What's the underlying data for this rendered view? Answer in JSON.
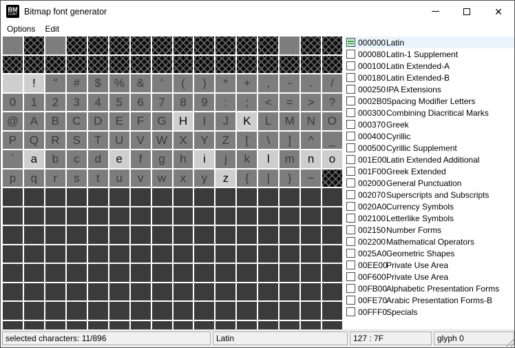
{
  "window": {
    "title": "Bitmap font generator",
    "icon": {
      "top": "BM",
      "bottom": "FONT"
    }
  },
  "menu": {
    "items": [
      {
        "label": "Options"
      },
      {
        "label": "Edit"
      }
    ]
  },
  "grid": {
    "columns": 16,
    "dark_rows": 8,
    "legend": {
      "n": "available",
      "s": "selected",
      "x": "not-in-font",
      "d": "empty"
    },
    "rows": [
      {
        "states": "nxnxxxxxxxxxxnxx",
        "glyphs": [
          "",
          "",
          "",
          "",
          "",
          "",
          "",
          "",
          "",
          "",
          "",
          "",
          "",
          "",
          "",
          ""
        ]
      },
      {
        "states": "xxxxxxxxxxxxxxxx",
        "glyphs": [
          "",
          "",
          "",
          "",
          "",
          "",
          "",
          "",
          "",
          "",
          "",
          "",
          "",
          "",
          "",
          ""
        ]
      },
      {
        "states": "ssnnnnnnnnnnnnnn",
        "glyphs": [
          " ",
          "!",
          "\"",
          "#",
          "$",
          "%",
          "&",
          "'",
          "(",
          ")",
          "*",
          "+",
          ",",
          "-",
          ".",
          "/"
        ]
      },
      {
        "states": "nnnnnnnnnnnnnnnn",
        "glyphs": [
          "0",
          "1",
          "2",
          "3",
          "4",
          "5",
          "6",
          "7",
          "8",
          "9",
          ":",
          ";",
          "<",
          "=",
          ">",
          "?"
        ]
      },
      {
        "states": "nnnnnnnnsnnsnnnn",
        "glyphs": [
          "@",
          "A",
          "B",
          "C",
          "D",
          "E",
          "F",
          "G",
          "H",
          "I",
          "J",
          "K",
          "L",
          "M",
          "N",
          "O"
        ]
      },
      {
        "states": "nnnnnnnnnnnnnnnn",
        "glyphs": [
          "P",
          "Q",
          "R",
          "S",
          "T",
          "U",
          "V",
          "W",
          "X",
          "Y",
          "Z",
          "[",
          "\\",
          "]",
          "^",
          "_"
        ]
      },
      {
        "states": "nsnnnsnnnsnnsnss",
        "glyphs": [
          "`",
          "a",
          "b",
          "c",
          "d",
          "e",
          "f",
          "g",
          "h",
          "i",
          "j",
          "k",
          "l",
          "m",
          "n",
          "o"
        ]
      },
      {
        "states": "nnnnnnnnnnsnnnnx",
        "glyphs": [
          "p",
          "q",
          "r",
          "s",
          "t",
          "u",
          "v",
          "w",
          "x",
          "y",
          "z",
          "{",
          "|",
          "}",
          "~",
          ""
        ]
      }
    ]
  },
  "blocks": [
    {
      "code": "000000",
      "name": "Latin",
      "checkbox": "partial",
      "selected": true
    },
    {
      "code": "000080",
      "name": "Latin-1 Supplement",
      "checkbox": "unchecked",
      "selected": false
    },
    {
      "code": "000100",
      "name": "Latin Extended-A",
      "checkbox": "unchecked",
      "selected": false
    },
    {
      "code": "000180",
      "name": "Latin Extended-B",
      "checkbox": "unchecked",
      "selected": false
    },
    {
      "code": "000250",
      "name": "IPA Extensions",
      "checkbox": "unchecked",
      "selected": false
    },
    {
      "code": "0002B0",
      "name": "Spacing Modifier Letters",
      "checkbox": "unchecked",
      "selected": false
    },
    {
      "code": "000300",
      "name": "Combining Diacritical Marks",
      "checkbox": "unchecked",
      "selected": false
    },
    {
      "code": "000370",
      "name": "Greek",
      "checkbox": "unchecked",
      "selected": false
    },
    {
      "code": "000400",
      "name": "Cyrillic",
      "checkbox": "unchecked",
      "selected": false
    },
    {
      "code": "000500",
      "name": "Cyrillic Supplement",
      "checkbox": "unchecked",
      "selected": false
    },
    {
      "code": "001E00",
      "name": "Latin Extended Additional",
      "checkbox": "unchecked",
      "selected": false
    },
    {
      "code": "001F00",
      "name": "Greek Extended",
      "checkbox": "unchecked",
      "selected": false
    },
    {
      "code": "002000",
      "name": "General Punctuation",
      "checkbox": "unchecked",
      "selected": false
    },
    {
      "code": "002070",
      "name": "Superscripts and Subscripts",
      "checkbox": "unchecked",
      "selected": false
    },
    {
      "code": "0020A0",
      "name": "Currency Symbols",
      "checkbox": "unchecked",
      "selected": false
    },
    {
      "code": "002100",
      "name": "Letterlike Symbols",
      "checkbox": "unchecked",
      "selected": false
    },
    {
      "code": "002150",
      "name": "Number Forms",
      "checkbox": "unchecked",
      "selected": false
    },
    {
      "code": "002200",
      "name": "Mathematical Operators",
      "checkbox": "unchecked",
      "selected": false
    },
    {
      "code": "0025A0",
      "name": "Geometric Shapes",
      "checkbox": "unchecked",
      "selected": false
    },
    {
      "code": "00EE00",
      "name": "Private Use Area",
      "checkbox": "unchecked",
      "selected": false
    },
    {
      "code": "00F600",
      "name": "Private Use Area",
      "checkbox": "unchecked",
      "selected": false
    },
    {
      "code": "00FB00",
      "name": "Alphabetic Presentation Forms",
      "checkbox": "unchecked",
      "selected": false
    },
    {
      "code": "00FE70",
      "name": "Arabic Presentation Forms-B",
      "checkbox": "unchecked",
      "selected": false
    },
    {
      "code": "00FFF0",
      "name": "Specials",
      "checkbox": "unchecked",
      "selected": false
    }
  ],
  "status": {
    "selected_characters": "selected characters: 11/896",
    "block_name": "Latin",
    "char_code": "127 : 7F",
    "glyph": "glyph 0"
  },
  "titlebar_icons": {
    "minimize": "minus-line",
    "maximize": "square-outline",
    "close": "✕"
  },
  "colors": {
    "partial_check_green": "#1f9b2c",
    "selected_row_blue": "#e9f4fc",
    "cell_available": "#7d7d7d",
    "cell_selected": "#cecece",
    "cell_empty": "#3b3b3b",
    "cell_unavailable": "#0c0c0c",
    "statusbar_bg": "#f0f0f0"
  }
}
